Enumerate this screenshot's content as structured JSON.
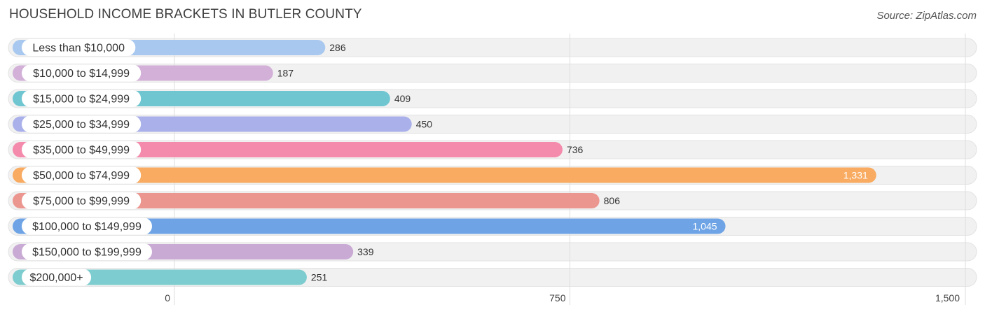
{
  "title": "HOUSEHOLD INCOME BRACKETS IN BUTLER COUNTY",
  "source": "Source: ZipAtlas.com",
  "chart_data": {
    "type": "bar",
    "orientation": "horizontal",
    "title": "HOUSEHOLD INCOME BRACKETS IN BUTLER COUNTY",
    "categories": [
      "Less than $10,000",
      "$10,000 to $14,999",
      "$15,000 to $24,999",
      "$25,000 to $34,999",
      "$35,000 to $49,999",
      "$50,000 to $74,999",
      "$75,000 to $99,999",
      "$100,000 to $149,999",
      "$150,000 to $199,999",
      "$200,000+"
    ],
    "values": [
      286,
      187,
      409,
      450,
      736,
      1331,
      806,
      1045,
      339,
      251
    ],
    "value_labels": [
      "286",
      "187",
      "409",
      "450",
      "736",
      "1,331",
      "806",
      "1,045",
      "339",
      "251"
    ],
    "colors": [
      "#a8c8ef",
      "#d2b0d8",
      "#6fc6d1",
      "#aab1ea",
      "#f48aac",
      "#f8ab61",
      "#ec9690",
      "#6ea4e6",
      "#c9aad4",
      "#7dcccf"
    ],
    "xlim": [
      0,
      1500
    ],
    "xticks": [
      0,
      750,
      1500
    ],
    "xtick_labels": [
      "0",
      "750",
      "1,500"
    ],
    "grid": true,
    "legend": "none"
  }
}
